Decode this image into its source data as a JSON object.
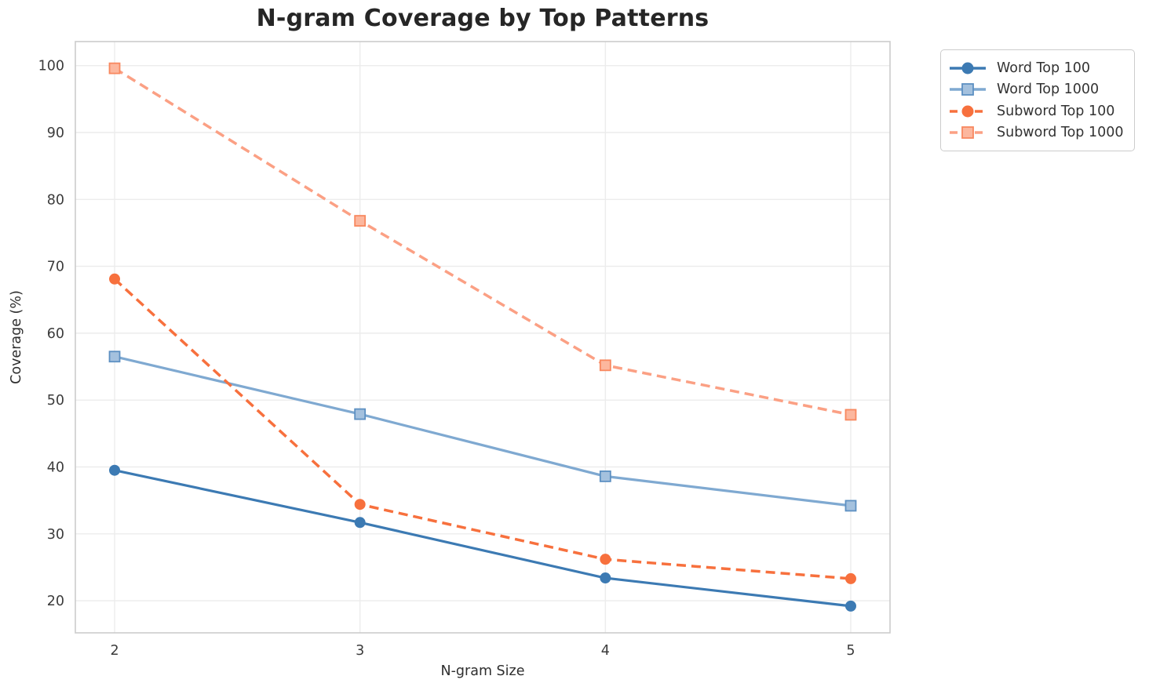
{
  "chart_data": {
    "type": "line",
    "title": "N-gram Coverage by Top Patterns",
    "xlabel": "N-gram Size",
    "ylabel": "Coverage (%)",
    "x": [
      2,
      3,
      4,
      5
    ],
    "x_tick_labels": [
      "2",
      "3",
      "4",
      "5"
    ],
    "y_ticks": [
      20,
      30,
      40,
      50,
      60,
      70,
      80,
      90,
      100
    ],
    "y_tick_labels": [
      "20",
      "30",
      "40",
      "50",
      "60",
      "70",
      "80",
      "90",
      "100"
    ],
    "xlim": [
      1.84,
      5.16
    ],
    "ylim": [
      15.2,
      103.6
    ],
    "grid": true,
    "legend_position": "outside-upper-right",
    "series": [
      {
        "name": "Word Top 100",
        "values": [
          39.5,
          31.7,
          23.4,
          19.2
        ],
        "color": "#3c7ab3",
        "line_style": "solid",
        "marker": "circle"
      },
      {
        "name": "Word Top 1000",
        "values": [
          56.5,
          47.9,
          38.6,
          34.2
        ],
        "color": "#7fa9d1",
        "marker_fill": "#a4c1de",
        "marker_edge": "#5d90c2",
        "line_style": "solid",
        "marker": "square"
      },
      {
        "name": "Subword Top 100",
        "values": [
          68.1,
          34.4,
          26.2,
          23.3
        ],
        "color": "#f7703d",
        "line_style": "dashed",
        "marker": "circle"
      },
      {
        "name": "Subword Top 1000",
        "values": [
          99.6,
          76.8,
          55.2,
          47.8
        ],
        "color": "#fba084",
        "marker_fill": "#fcb79e",
        "marker_edge": "#f8885f",
        "line_style": "dashed",
        "marker": "square"
      }
    ],
    "colors": {
      "grid": "#ececec",
      "spine": "#cccccc",
      "tick_label": "#3b3b3b",
      "title": "#262626",
      "axis_label": "#2e2e2e",
      "legend_text": "#333333"
    }
  }
}
